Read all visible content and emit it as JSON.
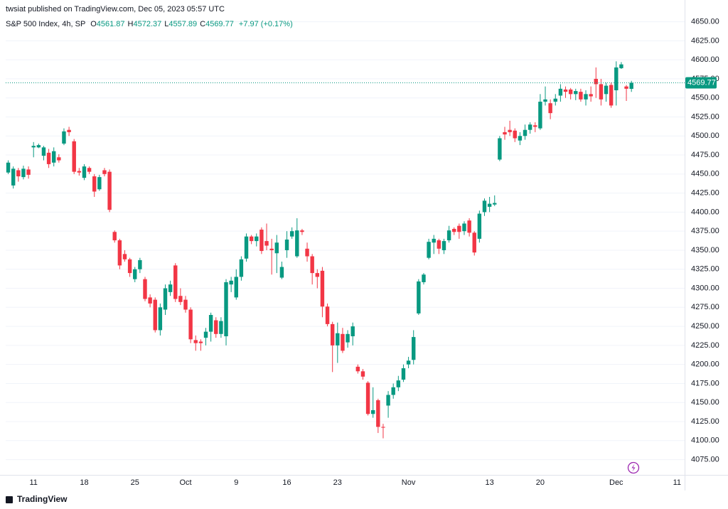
{
  "header": {
    "publisher": "twsiat published on TradingView.com, Dec 05, 2023 05:57 UTC",
    "symbol": "S&P 500 Index, 4h, SP",
    "ohlc": [
      {
        "key": "O",
        "value": "4561.87"
      },
      {
        "key": "H",
        "value": "4572.37"
      },
      {
        "key": "L",
        "value": "4557.89"
      },
      {
        "key": "C",
        "value": "4569.77"
      }
    ],
    "change": "+7.97 (+0.17%)"
  },
  "chart_data": {
    "type": "candlestick",
    "up_color": "#089981",
    "down_color": "#f23645",
    "grid": true,
    "ylim": [
      4055,
      4658
    ],
    "yticks": [
      {
        "value": 4075,
        "label": "4075.00"
      },
      {
        "value": 4100,
        "label": "4100.00"
      },
      {
        "value": 4125,
        "label": "4125.00"
      },
      {
        "value": 4150,
        "label": "4150.00"
      },
      {
        "value": 4175,
        "label": "4175.00"
      },
      {
        "value": 4200,
        "label": "4200.00"
      },
      {
        "value": 4225,
        "label": "4225.00"
      },
      {
        "value": 4250,
        "label": "4250.00"
      },
      {
        "value": 4275,
        "label": "4275.00"
      },
      {
        "value": 4300,
        "label": "4300.00"
      },
      {
        "value": 4325,
        "label": "4325.00"
      },
      {
        "value": 4350,
        "label": "4350.00"
      },
      {
        "value": 4375,
        "label": "4375.00"
      },
      {
        "value": 4400,
        "label": "4400.00"
      },
      {
        "value": 4425,
        "label": "4425.00"
      },
      {
        "value": 4450,
        "label": "4450.00"
      },
      {
        "value": 4475,
        "label": "4475.00"
      },
      {
        "value": 4500,
        "label": "4500.00"
      },
      {
        "value": 4525,
        "label": "4525.00"
      },
      {
        "value": 4550,
        "label": "4550.00"
      },
      {
        "value": 4575,
        "label": "4575.00"
      },
      {
        "value": 4600,
        "label": "4600.00"
      },
      {
        "value": 4625,
        "label": "4625.00"
      },
      {
        "value": 4650,
        "label": "4650.00"
      }
    ],
    "last_price": 4569.77,
    "categories": [
      null,
      null,
      null,
      null,
      null,
      "11",
      null,
      null,
      null,
      null,
      null,
      null,
      null,
      null,
      null,
      "18",
      null,
      null,
      null,
      null,
      null,
      null,
      null,
      null,
      null,
      "25",
      null,
      null,
      null,
      null,
      null,
      null,
      null,
      null,
      null,
      "Oct",
      null,
      null,
      null,
      null,
      null,
      null,
      null,
      null,
      null,
      "9",
      null,
      null,
      null,
      null,
      null,
      null,
      null,
      null,
      null,
      "16",
      null,
      null,
      null,
      null,
      null,
      null,
      null,
      null,
      null,
      "23",
      null,
      null,
      null,
      null,
      null,
      null,
      null,
      null,
      null,
      null,
      null,
      null,
      null,
      "Nov",
      null,
      null,
      null,
      null,
      null,
      null,
      null,
      null,
      null,
      null,
      null,
      null,
      null,
      null,
      null,
      "13",
      null,
      null,
      null,
      null,
      null,
      null,
      null,
      null,
      null,
      "20",
      null,
      null,
      null,
      null,
      null,
      null,
      null,
      null,
      null,
      null,
      null,
      null,
      null,
      null,
      "Dec",
      null,
      null,
      null,
      null,
      null,
      null,
      null,
      null,
      null,
      null,
      null,
      "11",
      null
    ],
    "open": [
      4452,
      4435,
      4455,
      4446,
      4456,
      4485,
      4485,
      4474,
      4478,
      4465,
      4472,
      4490,
      4508,
      4493,
      4454,
      4445,
      4458,
      4447,
      4430,
      4455,
      4453,
      4374,
      4363,
      4345,
      4338,
      4312,
      4325,
      4312,
      4288,
      4285,
      4245,
      4272,
      4295,
      4330,
      4290,
      4285,
      4272,
      4232,
      4230,
      4235,
      4243,
      4258,
      4240,
      4237,
      4305,
      4288,
      4315,
      4339,
      4368,
      4362,
      4377,
      4362,
      4352,
      4346,
      4314,
      4350,
      4368,
      4342,
      4376,
      4352,
      4342,
      4320,
      4323,
      4276,
      4253,
      4225,
      4240,
      4229,
      4237,
      4197,
      4191,
      4176,
      4135,
      4153,
      4118,
      4146,
      4160,
      4170,
      4180,
      4200,
      4206,
      4267,
      4308,
      4340,
      4360,
      4363,
      4350,
      4363,
      4378,
      4382,
      4375,
      4389,
      4373,
      4365,
      4400,
      4407,
      4410,
      4469,
      4505,
      4508,
      4507,
      4494,
      4500,
      4508,
      4514,
      4510,
      4545,
      4543,
      4545,
      4553,
      4561,
      4561,
      4555,
      4558,
      4548,
      4555,
      4575,
      4568,
      4555,
      4567,
      4560,
      4589,
      4565,
      4561.87,
      null,
      null,
      null,
      null,
      null,
      null,
      null,
      null,
      null,
      null
    ],
    "high": [
      4468,
      4460,
      4458,
      4461,
      4460,
      4492,
      4490,
      4487,
      4483,
      4485,
      4476,
      4510,
      4512,
      4496,
      4458,
      4463,
      4460,
      4450,
      4449,
      4458,
      4456,
      4376,
      4365,
      4350,
      4340,
      4328,
      4340,
      4315,
      4292,
      4288,
      4280,
      4305,
      4310,
      4333,
      4300,
      4290,
      4275,
      4238,
      4233,
      4248,
      4268,
      4262,
      4262,
      4312,
      4315,
      4325,
      4342,
      4372,
      4370,
      4372,
      4380,
      4385,
      4365,
      4370,
      4335,
      4375,
      4380,
      4392,
      4378,
      4360,
      4345,
      4325,
      4328,
      4280,
      4256,
      4255,
      4248,
      4245,
      4255,
      4200,
      4194,
      4178,
      4170,
      4155,
      4122,
      4165,
      4175,
      4185,
      4200,
      4210,
      4245,
      4312,
      4320,
      4365,
      4370,
      4365,
      4365,
      4382,
      4380,
      4385,
      4388,
      4392,
      4375,
      4402,
      4418,
      4420,
      4422,
      4500,
      4512,
      4520,
      4510,
      4505,
      4515,
      4518,
      4518,
      4555,
      4565,
      4548,
      4555,
      4568,
      4565,
      4563,
      4562,
      4562,
      4560,
      4565,
      4590,
      4575,
      4570,
      4570,
      4598,
      4597,
      4567,
      4572.37,
      null,
      null,
      null,
      null,
      null,
      null,
      null,
      null,
      null,
      null
    ],
    "low": [
      4450,
      4431,
      4440,
      4443,
      4444,
      4472,
      4484,
      4468,
      4458,
      4460,
      4465,
      4488,
      4500,
      4450,
      4448,
      4442,
      4450,
      4420,
      4428,
      4447,
      4400,
      4360,
      4325,
      4335,
      4315,
      4308,
      4320,
      4283,
      4275,
      4242,
      4238,
      4265,
      4290,
      4282,
      4278,
      4268,
      4228,
      4218,
      4218,
      4225,
      4230,
      4235,
      4235,
      4225,
      4295,
      4285,
      4310,
      4335,
      4358,
      4355,
      4345,
      4350,
      4318,
      4320,
      4312,
      4340,
      4365,
      4340,
      4370,
      4335,
      4305,
      4300,
      4262,
      4250,
      4190,
      4202,
      4215,
      4222,
      4225,
      4188,
      4180,
      4133,
      4130,
      4110,
      4103,
      4130,
      4155,
      4165,
      4177,
      4195,
      4200,
      4265,
      4305,
      4338,
      4345,
      4345,
      4345,
      4360,
      4370,
      4365,
      4370,
      4368,
      4343,
      4360,
      4395,
      4400,
      4408,
      4467,
      4495,
      4500,
      4492,
      4488,
      4495,
      4503,
      4505,
      4508,
      4540,
      4522,
      4540,
      4545,
      4550,
      4548,
      4547,
      4545,
      4540,
      4545,
      4550,
      4540,
      4545,
      4537,
      4540,
      4588,
      4546,
      4557.89,
      null,
      null,
      null,
      null,
      null,
      null,
      null,
      null,
      null,
      null
    ],
    "close": [
      4465,
      4457,
      4447,
      4457,
      4449,
      4487,
      4488,
      4485,
      4463,
      4480,
      4468,
      4506,
      4505,
      4453,
      4452,
      4460,
      4453,
      4427,
      4446,
      4450,
      4403,
      4363,
      4330,
      4338,
      4320,
      4325,
      4337,
      4286,
      4280,
      4245,
      4275,
      4300,
      4305,
      4286,
      4282,
      4272,
      4233,
      4228,
      4228,
      4243,
      4265,
      4240,
      4257,
      4308,
      4310,
      4315,
      4338,
      4368,
      4362,
      4368,
      4349,
      4356,
      4350,
      4360,
      4328,
      4364,
      4375,
      4376,
      4374,
      4342,
      4320,
      4315,
      4276,
      4253,
      4225,
      4241,
      4218,
      4240,
      4250,
      4191,
      4184,
      4135,
      4140,
      4118,
      4117,
      4160,
      4170,
      4179,
      4195,
      4205,
      4236,
      4309,
      4318,
      4361,
      4365,
      4352,
      4362,
      4376,
      4374,
      4374,
      4385,
      4373,
      4347,
      4398,
      4415,
      4411,
      4412,
      4497,
      4502,
      4505,
      4497,
      4500,
      4508,
      4515,
      4512,
      4545,
      4548,
      4530,
      4549,
      4562,
      4558,
      4555,
      4559,
      4548,
      4555,
      4552,
      4568,
      4548,
      4566,
      4540,
      4590,
      4594,
      4562,
      4569.77,
      null,
      null,
      null,
      null,
      null,
      null,
      null,
      null,
      null,
      null
    ]
  },
  "footer": {
    "brand": "TradingView"
  }
}
